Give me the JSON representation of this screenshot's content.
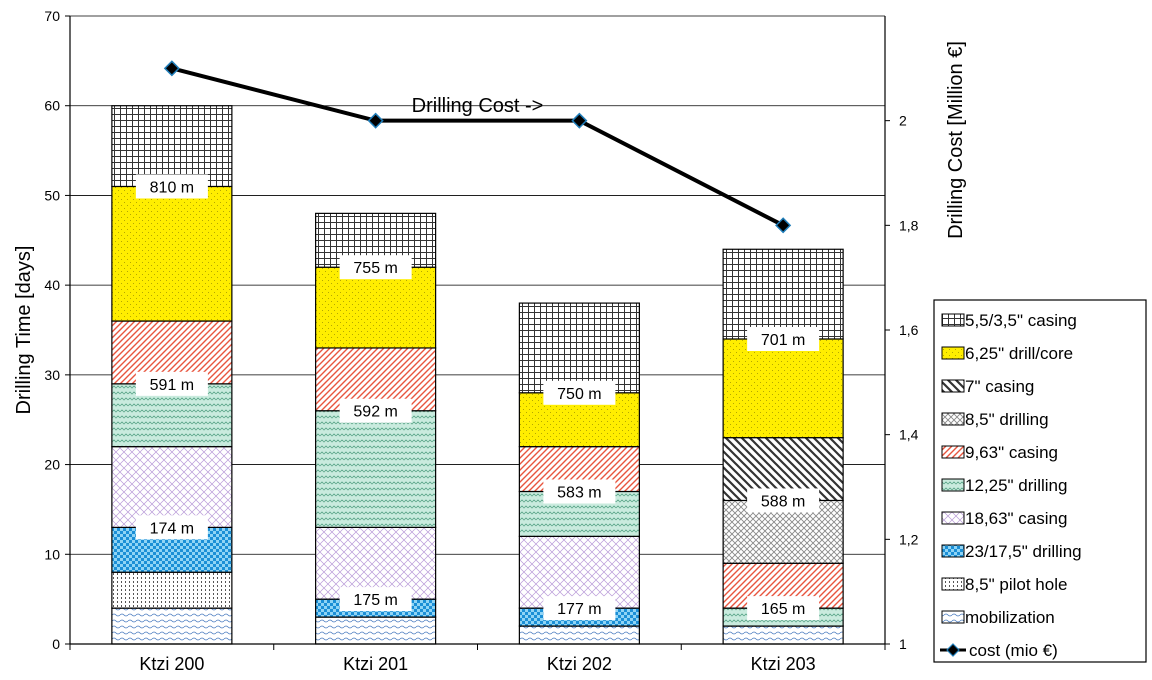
{
  "chart_data": {
    "type": "bar",
    "stacked": true,
    "categories": [
      "Ktzi 200",
      "Ktzi 201",
      "Ktzi 202",
      "Ktzi 203"
    ],
    "ylabel": "Drilling Time [days]",
    "ylim": [
      0,
      70
    ],
    "yticks": [
      "0",
      "10",
      "20",
      "30",
      "40",
      "50",
      "60",
      "70"
    ],
    "y2label": "Drilling Cost [Million €]",
    "y2lim": [
      1,
      2.2
    ],
    "y2ticks": [
      "1",
      "1,2",
      "1,4",
      "1,6",
      "1,8",
      "2"
    ],
    "grid": true,
    "legend_position": "right",
    "series": [
      {
        "name": "mobilization",
        "values": [
          4,
          3,
          2,
          2
        ],
        "pattern": "wave",
        "color": "#4a7bbf"
      },
      {
        "name": "8,5\" pilot hole",
        "values": [
          4,
          0,
          0,
          0
        ],
        "pattern": "dots",
        "color": "#555555"
      },
      {
        "name": "23/17,5\" drilling",
        "values": [
          5,
          2,
          2,
          0
        ],
        "pattern": "check",
        "color": "#29a3e0"
      },
      {
        "name": "18,63\" casing",
        "values": [
          9,
          8,
          8,
          0
        ],
        "pattern": "diagcross",
        "color": "#b99ad8"
      },
      {
        "name": "12,25\" drilling",
        "values": [
          7,
          13,
          5,
          2
        ],
        "pattern": "zigzag",
        "color": "#8fc9b3"
      },
      {
        "name": "9,63\" casing",
        "values": [
          7,
          7,
          5,
          5
        ],
        "pattern": "stripes",
        "color": "#e8553e"
      },
      {
        "name": "8,5\" drilling",
        "values": [
          0,
          0,
          0,
          7
        ],
        "pattern": "checker",
        "color": "#888888"
      },
      {
        "name": "7\" casing",
        "values": [
          0,
          0,
          0,
          7
        ],
        "pattern": "wide",
        "color": "#444444"
      },
      {
        "name": "6,25\" drill/core",
        "values": [
          15,
          9,
          6,
          11
        ],
        "pattern": "yellow",
        "color": "#ffee00"
      },
      {
        "name": "5,5/3,5\" casing",
        "values": [
          9,
          6,
          10,
          10
        ],
        "pattern": "grid",
        "color": "#333333"
      }
    ],
    "line_series": {
      "name": "cost (mio €)",
      "axis": "right",
      "values": [
        2.1,
        2.0,
        2.0,
        1.8
      ],
      "color": "#000000",
      "marker_color": "#1e7cb8"
    },
    "data_labels": [
      {
        "category": "Ktzi 200",
        "text": "810 m",
        "y": 51
      },
      {
        "category": "Ktzi 200",
        "text": "591 m",
        "y": 29
      },
      {
        "category": "Ktzi 200",
        "text": "174 m",
        "y": 13
      },
      {
        "category": "Ktzi 201",
        "text": "755 m",
        "y": 42
      },
      {
        "category": "Ktzi 201",
        "text": "592 m",
        "y": 26
      },
      {
        "category": "Ktzi 201",
        "text": "175 m",
        "y": 5
      },
      {
        "category": "Ktzi 202",
        "text": "750 m",
        "y": 28
      },
      {
        "category": "Ktzi 202",
        "text": "583 m",
        "y": 17
      },
      {
        "category": "Ktzi 202",
        "text": "177 m",
        "y": 4
      },
      {
        "category": "Ktzi 203",
        "text": "701 m",
        "y": 34
      },
      {
        "category": "Ktzi 203",
        "text": "588 m",
        "y": 16
      },
      {
        "category": "Ktzi 203",
        "text": "165 m",
        "y": 4
      }
    ],
    "annotation": {
      "text": "Drilling Cost ->",
      "y2": 2.03,
      "between": [
        "Ktzi 201",
        "Ktzi 202"
      ]
    }
  }
}
